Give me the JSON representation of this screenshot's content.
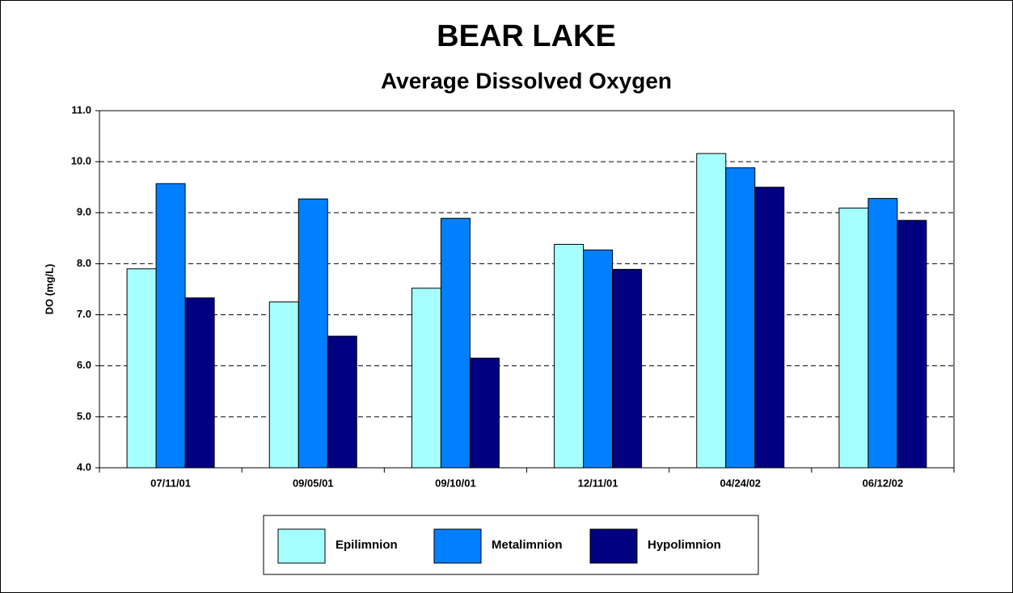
{
  "chart_data": {
    "type": "bar",
    "title": "BEAR LAKE",
    "subtitle": "Average Dissolved Oxygen",
    "y_label": "DO (mg/L)",
    "categories": [
      "07/11/01",
      "09/05/01",
      "09/10/01",
      "12/11/01",
      "04/24/02",
      "06/12/02"
    ],
    "series": [
      {
        "name": "Epilimnion",
        "color": "#a6ffff",
        "values": [
          7.9,
          7.25,
          7.52,
          8.38,
          10.16,
          9.09
        ]
      },
      {
        "name": "Metalimnion",
        "color": "#0080ff",
        "values": [
          9.57,
          9.27,
          8.89,
          8.27,
          9.88,
          9.28
        ]
      },
      {
        "name": "Hypolimnion",
        "color": "#000080",
        "values": [
          7.33,
          6.58,
          6.15,
          7.89,
          9.5,
          8.85
        ]
      }
    ],
    "ylim": [
      4,
      11
    ],
    "yticks": [
      {
        "value": 4,
        "label": "4.0"
      },
      {
        "value": 5,
        "label": "5.0"
      },
      {
        "value": 6,
        "label": "6.0"
      },
      {
        "value": 7,
        "label": "7.0"
      },
      {
        "value": 8,
        "label": "8.0"
      },
      {
        "value": 9,
        "label": "9.0"
      },
      {
        "value": 10,
        "label": "10.0"
      },
      {
        "value": 11,
        "label": "11.0"
      }
    ],
    "grid": true,
    "legend": "bottom"
  }
}
